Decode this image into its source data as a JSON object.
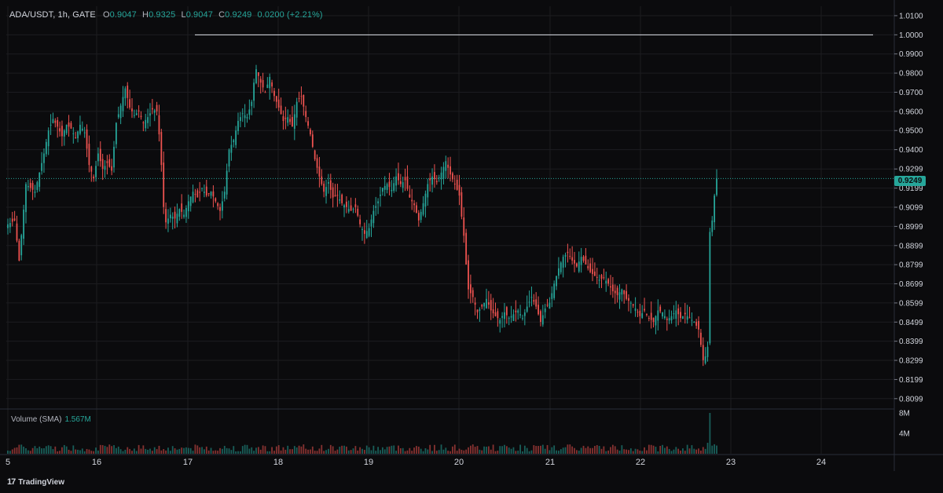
{
  "header": {
    "symbol": "ADA/USDT, 1h, GATE",
    "open_key": "O",
    "open": "0.9047",
    "high_key": "H",
    "high": "0.9325",
    "low_key": "L",
    "low": "0.9047",
    "close_key": "C",
    "close": "0.9249",
    "change": "0.0200 (+2.21%)"
  },
  "volume_panel": {
    "label": "Volume (SMA)",
    "value": "1.567M",
    "ticks": [
      "8M",
      "4M"
    ]
  },
  "last_price_tag": "0.9249",
  "brand": {
    "logo_text": "TradingView",
    "logo_icon": "tradingview-logo-icon"
  },
  "colors": {
    "up": "#26a69a",
    "down": "#ef5350",
    "grid": "#1c1c20",
    "background": "#0b0b0d"
  },
  "chart_data": {
    "type": "candlestick",
    "symbol": "ADA/USDT",
    "interval": "1h",
    "exchange": "GATE",
    "y_ticks": [
      "1.0100",
      "1.0000",
      "0.9900",
      "0.9800",
      "0.9700",
      "0.9600",
      "0.9500",
      "0.9400",
      "0.9299",
      "0.9199",
      "0.9099",
      "0.8999",
      "0.8899",
      "0.8799",
      "0.8699",
      "0.8599",
      "0.8499",
      "0.8399",
      "0.8299",
      "0.8199",
      "0.8099"
    ],
    "ylim": [
      0.8049,
      1.0149
    ],
    "x_ticks": [
      "5",
      "16",
      "17",
      "18",
      "19",
      "20",
      "21",
      "22",
      "23",
      "24"
    ],
    "horizontal_line": 1.0,
    "last_price": 0.9249,
    "grid": true,
    "anchors": [
      [
        0,
        0.901
      ],
      [
        3,
        0.903
      ],
      [
        5,
        0.882
      ],
      [
        8,
        0.922
      ],
      [
        12,
        0.918
      ],
      [
        14,
        0.928
      ],
      [
        16,
        0.938
      ],
      [
        18,
        0.95
      ],
      [
        20,
        0.956
      ],
      [
        22,
        0.952
      ],
      [
        24,
        0.947
      ],
      [
        26,
        0.953
      ],
      [
        28,
        0.951
      ],
      [
        30,
        0.946
      ],
      [
        32,
        0.953
      ],
      [
        34,
        0.949
      ],
      [
        36,
        0.932
      ],
      [
        38,
        0.925
      ],
      [
        40,
        0.938
      ],
      [
        42,
        0.93
      ],
      [
        44,
        0.933
      ],
      [
        46,
        0.929
      ],
      [
        48,
        0.954
      ],
      [
        50,
        0.963
      ],
      [
        52,
        0.972
      ],
      [
        54,
        0.962
      ],
      [
        56,
        0.958
      ],
      [
        58,
        0.96
      ],
      [
        60,
        0.954
      ],
      [
        62,
        0.957
      ],
      [
        64,
        0.961
      ],
      [
        66,
        0.96
      ],
      [
        67,
        0.948
      ],
      [
        68,
        0.932
      ],
      [
        69,
        0.91
      ],
      [
        70,
        0.902
      ],
      [
        72,
        0.906
      ],
      [
        74,
        0.904
      ],
      [
        76,
        0.909
      ],
      [
        78,
        0.906
      ],
      [
        80,
        0.913
      ],
      [
        82,
        0.918
      ],
      [
        84,
        0.915
      ],
      [
        86,
        0.92
      ],
      [
        88,
        0.916
      ],
      [
        90,
        0.918
      ],
      [
        92,
        0.913
      ],
      [
        94,
        0.908
      ],
      [
        96,
        0.918
      ],
      [
        98,
        0.94
      ],
      [
        100,
        0.945
      ],
      [
        102,
        0.955
      ],
      [
        104,
        0.959
      ],
      [
        106,
        0.957
      ],
      [
        108,
        0.965
      ],
      [
        109,
        0.975
      ],
      [
        110,
        0.982
      ],
      [
        112,
        0.975
      ],
      [
        114,
        0.97
      ],
      [
        116,
        0.978
      ],
      [
        118,
        0.968
      ],
      [
        120,
        0.962
      ],
      [
        122,
        0.955
      ],
      [
        124,
        0.957
      ],
      [
        126,
        0.952
      ],
      [
        128,
        0.965
      ],
      [
        130,
        0.968
      ],
      [
        132,
        0.957
      ],
      [
        134,
        0.948
      ],
      [
        136,
        0.935
      ],
      [
        138,
        0.926
      ],
      [
        140,
        0.918
      ],
      [
        142,
        0.923
      ],
      [
        144,
        0.915
      ],
      [
        146,
        0.916
      ],
      [
        148,
        0.912
      ],
      [
        150,
        0.91
      ],
      [
        152,
        0.908
      ],
      [
        154,
        0.91
      ],
      [
        156,
        0.901
      ],
      [
        158,
        0.896
      ],
      [
        160,
        0.899
      ],
      [
        162,
        0.908
      ],
      [
        164,
        0.913
      ],
      [
        166,
        0.92
      ],
      [
        168,
        0.922
      ],
      [
        170,
        0.919
      ],
      [
        172,
        0.926
      ],
      [
        174,
        0.922
      ],
      [
        176,
        0.924
      ],
      [
        178,
        0.915
      ],
      [
        180,
        0.911
      ],
      [
        182,
        0.903
      ],
      [
        184,
        0.912
      ],
      [
        186,
        0.922
      ],
      [
        188,
        0.926
      ],
      [
        190,
        0.923
      ],
      [
        192,
        0.928
      ],
      [
        194,
        0.934
      ],
      [
        196,
        0.927
      ],
      [
        198,
        0.922
      ],
      [
        200,
        0.916
      ],
      [
        201,
        0.905
      ],
      [
        202,
        0.895
      ],
      [
        203,
        0.88
      ],
      [
        204,
        0.867
      ],
      [
        206,
        0.863
      ],
      [
        208,
        0.855
      ],
      [
        210,
        0.858
      ],
      [
        212,
        0.862
      ],
      [
        214,
        0.856
      ],
      [
        216,
        0.853
      ],
      [
        218,
        0.851
      ],
      [
        220,
        0.855
      ],
      [
        222,
        0.852
      ],
      [
        224,
        0.854
      ],
      [
        226,
        0.856
      ],
      [
        228,
        0.852
      ],
      [
        230,
        0.858
      ],
      [
        232,
        0.863
      ],
      [
        234,
        0.858
      ],
      [
        236,
        0.85
      ],
      [
        238,
        0.857
      ],
      [
        240,
        0.86
      ],
      [
        242,
        0.87
      ],
      [
        244,
        0.878
      ],
      [
        246,
        0.884
      ],
      [
        248,
        0.886
      ],
      [
        250,
        0.882
      ],
      [
        252,
        0.879
      ],
      [
        254,
        0.884
      ],
      [
        256,
        0.88
      ],
      [
        258,
        0.876
      ],
      [
        260,
        0.874
      ],
      [
        262,
        0.872
      ],
      [
        264,
        0.873
      ],
      [
        266,
        0.87
      ],
      [
        268,
        0.866
      ],
      [
        270,
        0.864
      ],
      [
        272,
        0.867
      ],
      [
        274,
        0.862
      ],
      [
        276,
        0.86
      ],
      [
        278,
        0.857
      ],
      [
        280,
        0.853
      ],
      [
        282,
        0.856
      ],
      [
        284,
        0.852
      ],
      [
        286,
        0.85
      ],
      [
        288,
        0.856
      ],
      [
        290,
        0.855
      ],
      [
        292,
        0.851
      ],
      [
        294,
        0.853
      ],
      [
        296,
        0.856
      ],
      [
        298,
        0.852
      ],
      [
        300,
        0.854
      ],
      [
        302,
        0.852
      ],
      [
        304,
        0.85
      ],
      [
        306,
        0.846
      ],
      [
        307,
        0.838
      ],
      [
        308,
        0.83
      ],
      [
        309,
        0.832
      ],
      [
        310,
        0.837
      ],
      [
        311,
        0.897
      ],
      [
        312,
        0.903
      ],
      [
        313,
        0.916
      ],
      [
        314,
        0.9249
      ]
    ]
  }
}
